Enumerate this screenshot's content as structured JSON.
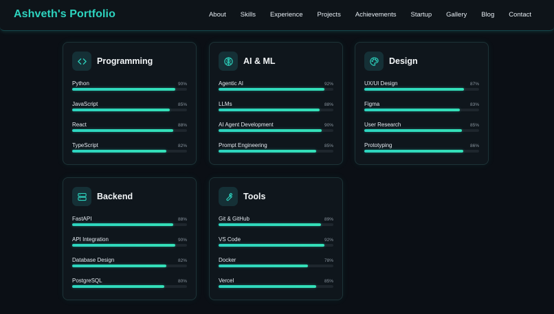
{
  "brand": "Ashveth's Portfolio",
  "nav": [
    "About",
    "Skills",
    "Experience",
    "Projects",
    "Achievements",
    "Startup",
    "Gallery",
    "Blog",
    "Contact"
  ],
  "colors": {
    "accent": "#2dd4bf",
    "background": "#0b0f15",
    "card": "#0f161c"
  },
  "cards": [
    {
      "title": "Programming",
      "icon": "code-icon",
      "skills": [
        {
          "name": "Python",
          "pct": "90%",
          "level": 90
        },
        {
          "name": "JavaScript",
          "pct": "85%",
          "level": 85
        },
        {
          "name": "React",
          "pct": "88%",
          "level": 88
        },
        {
          "name": "TypeScript",
          "pct": "82%",
          "level": 82
        }
      ]
    },
    {
      "title": "AI & ML",
      "icon": "brain-icon",
      "skills": [
        {
          "name": "Agentic AI",
          "pct": "92%",
          "level": 92
        },
        {
          "name": "LLMs",
          "pct": "88%",
          "level": 88
        },
        {
          "name": "AI Agent Development",
          "pct": "90%",
          "level": 90
        },
        {
          "name": "Prompt Engineering",
          "pct": "85%",
          "level": 85
        }
      ]
    },
    {
      "title": "Design",
      "icon": "palette-icon",
      "skills": [
        {
          "name": "UX/UI Design",
          "pct": "87%",
          "level": 87
        },
        {
          "name": "Figma",
          "pct": "83%",
          "level": 83
        },
        {
          "name": "User Research",
          "pct": "85%",
          "level": 85
        },
        {
          "name": "Prototyping",
          "pct": "86%",
          "level": 86
        }
      ]
    },
    {
      "title": "Backend",
      "icon": "server-icon",
      "skills": [
        {
          "name": "FastAPI",
          "pct": "88%",
          "level": 88
        },
        {
          "name": "API Integration",
          "pct": "90%",
          "level": 90
        },
        {
          "name": "Database Design",
          "pct": "82%",
          "level": 82
        },
        {
          "name": "PostgreSQL",
          "pct": "80%",
          "level": 80
        }
      ]
    },
    {
      "title": "Tools",
      "icon": "wrench-icon",
      "skills": [
        {
          "name": "Git & GitHub",
          "pct": "89%",
          "level": 89
        },
        {
          "name": "VS Code",
          "pct": "92%",
          "level": 92
        },
        {
          "name": "Docker",
          "pct": "78%",
          "level": 78
        },
        {
          "name": "Vercel",
          "pct": "85%",
          "level": 85
        }
      ]
    }
  ]
}
